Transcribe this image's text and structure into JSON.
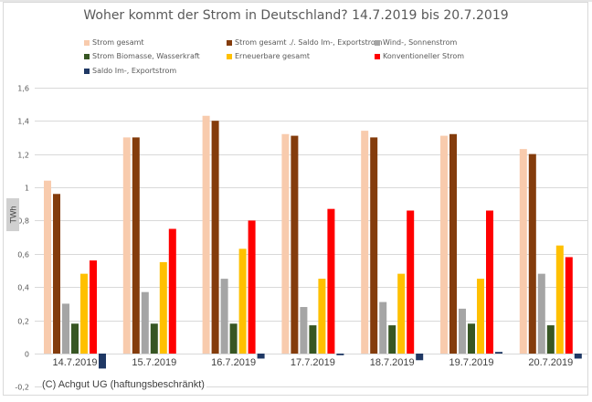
{
  "chart_data": {
    "type": "bar",
    "title": "Woher kommt der Strom in Deutschland? 14.7.2019 bis 20.7.2019",
    "xlabel": "",
    "ylabel": "TWh",
    "ylim": [
      -0.2,
      1.6
    ],
    "yticks": [
      "1,6",
      "1,4",
      "1,2",
      "1",
      "0,8",
      "0,6",
      "0,4",
      "0,2",
      "0",
      "-0,2"
    ],
    "ytick_values": [
      1.6,
      1.4,
      1.2,
      1.0,
      0.8,
      0.6,
      0.4,
      0.2,
      0,
      -0.2
    ],
    "grid": true,
    "legend_position": "top",
    "categories": [
      "14.7.2019",
      "15.7.2019",
      "16.7.2019",
      "17.7.2019",
      "18.7.2019",
      "19.7.2019",
      "20.7.2019"
    ],
    "series": [
      {
        "name": "Strom gesamt",
        "color": "#F8CBAD",
        "values": [
          1.04,
          1.3,
          1.43,
          1.32,
          1.34,
          1.31,
          1.23
        ]
      },
      {
        "name": "Strom gesamt ./. Saldo Im-, Exportstrom",
        "color": "#843C0C",
        "values": [
          0.96,
          1.3,
          1.4,
          1.31,
          1.3,
          1.32,
          1.2
        ]
      },
      {
        "name": "Wind-, Sonnenstrom",
        "color": "#A5A5A5",
        "values": [
          0.3,
          0.37,
          0.45,
          0.28,
          0.31,
          0.27,
          0.48
        ]
      },
      {
        "name": "Strom Biomasse, Wasserkraft",
        "color": "#375623",
        "values": [
          0.18,
          0.18,
          0.18,
          0.17,
          0.17,
          0.18,
          0.17
        ]
      },
      {
        "name": "Erneuerbare gesamt",
        "color": "#FFC000",
        "values": [
          0.48,
          0.55,
          0.63,
          0.45,
          0.48,
          0.45,
          0.65
        ]
      },
      {
        "name": "Konventioneller Strom",
        "color": "#FF0000",
        "values": [
          0.56,
          0.75,
          0.8,
          0.87,
          0.86,
          0.86,
          0.58
        ]
      },
      {
        "name": "Saldo Im-, Exportstrom",
        "color": "#1F3864",
        "values": [
          -0.09,
          0.0,
          -0.03,
          -0.01,
          -0.04,
          0.01,
          -0.03
        ]
      }
    ],
    "annotations": [
      "(C) Achgut UG (haftungsbeschränkt)"
    ]
  }
}
